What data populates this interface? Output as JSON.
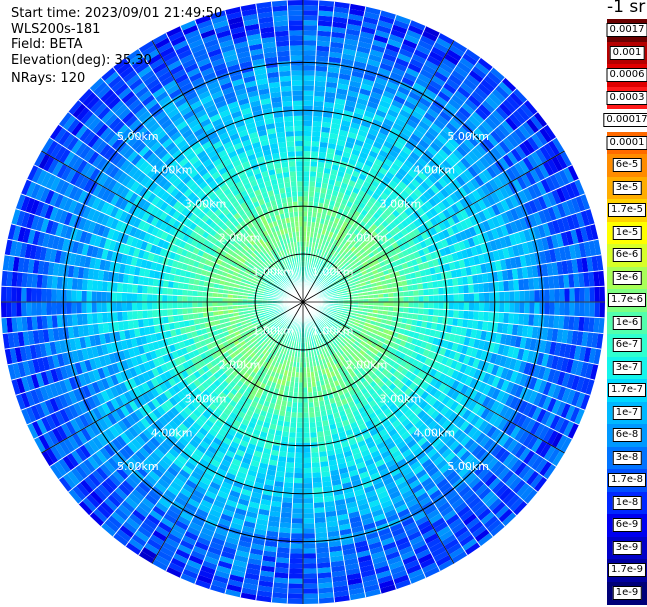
{
  "header": {
    "start_time": "Start time: 2023/09/01 21:49:50",
    "instrument": "WLS200s-181",
    "field": "Field: BETA",
    "elevation": "Elevation(deg): 35.30",
    "nrays": "NRays: 120"
  },
  "colorbar": {
    "unit": "-1 sr",
    "levels": [
      "0.0017",
      "0.001",
      "0.0006",
      "0.0003",
      "0.00017",
      "0.0001",
      "6e-5",
      "3e-5",
      "1.7e-5",
      "1e-5",
      "6e-6",
      "3e-6",
      "1.7e-6",
      "1e-6",
      "6e-7",
      "3e-7",
      "1.7e-7",
      "1e-7",
      "6e-8",
      "3e-8",
      "1.7e-8",
      "1e-8",
      "6e-9",
      "3e-9",
      "1.7e-9",
      "1e-9"
    ],
    "colors": [
      "#6b0000",
      "#b50000",
      "#e00000",
      "#ff1a1a",
      "#ffffff",
      "#ff6a00",
      "#ff8c00",
      "#ffad00",
      "#ffd200",
      "#ffff00",
      "#d7ff28",
      "#a8ff57",
      "#7dff82",
      "#52ffad",
      "#2fffd0",
      "#14f4eb",
      "#00d8ff",
      "#00b8ff",
      "#0098ff",
      "#0074ff",
      "#0050ff",
      "#0028ff",
      "#0000f0",
      "#0000c8",
      "#0000a0",
      "#000078"
    ]
  },
  "chart_data": {
    "type": "heatmap",
    "projection": "polar-ppi",
    "field": "BETA",
    "elevation_deg": 35.3,
    "n_rays": 120,
    "max_range_km": 6.3,
    "range_rings_km": [
      1,
      2,
      3,
      4,
      5
    ],
    "ring_labels": [
      "1.00km",
      "2.00km",
      "3.00km",
      "4.00km",
      "5.00km"
    ],
    "azimuth_spokes_deg": [
      0,
      30,
      60,
      90,
      120,
      150,
      180,
      210,
      240,
      270,
      300,
      330
    ],
    "radial_profile": [
      {
        "range_km": 0.0,
        "color_level": 14.5
      },
      {
        "range_km": 0.5,
        "color_level": 14.5
      },
      {
        "range_km": 1.0,
        "color_level": 13.2
      },
      {
        "range_km": 1.5,
        "color_level": 12.2
      },
      {
        "range_km": 2.0,
        "color_level": 12.8
      },
      {
        "range_km": 2.5,
        "color_level": 14.0
      },
      {
        "range_km": 3.0,
        "color_level": 15.0
      },
      {
        "range_km": 3.5,
        "color_level": 15.8
      },
      {
        "range_km": 4.0,
        "color_level": 16.5
      },
      {
        "range_km": 4.5,
        "color_level": 17.4
      },
      {
        "range_km": 5.0,
        "color_level": 18.5
      },
      {
        "range_km": 5.5,
        "color_level": 19.5
      },
      {
        "range_km": 6.3,
        "color_level": 20.5
      }
    ]
  }
}
